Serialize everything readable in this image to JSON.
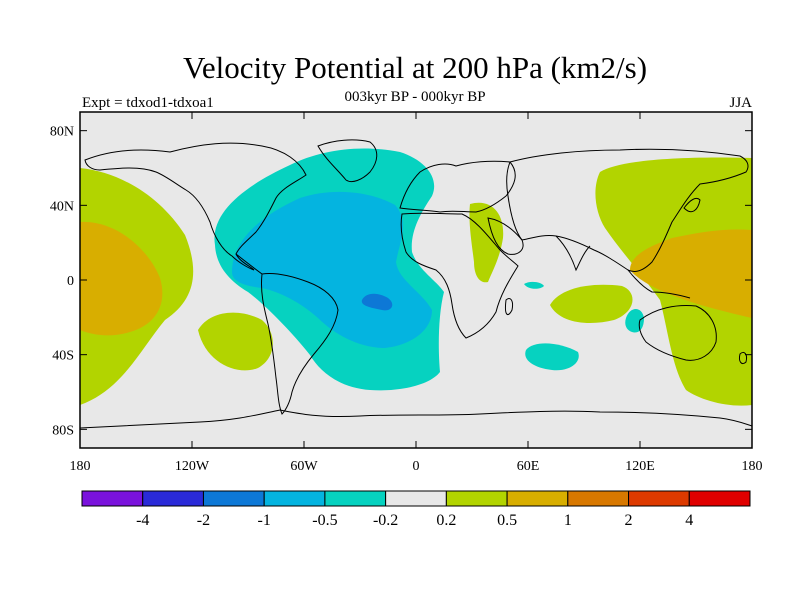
{
  "header": {
    "title": "Velocity Potential at 200 hPa (km2/s)",
    "subtitle": "003kyr BP - 000kyr BP",
    "left_label": "Expt = tdxod1-tdxoa1",
    "right_label": "JJA"
  },
  "map": {
    "lat_ticks": [
      "80N",
      "40N",
      "0",
      "40S",
      "80S"
    ],
    "lat_values": [
      80,
      40,
      0,
      -40,
      -80
    ],
    "lon_ticks": [
      "180",
      "120W",
      "60W",
      "0",
      "60E",
      "120E",
      "180"
    ],
    "lon_values": [
      -180,
      -120,
      -60,
      0,
      60,
      120,
      180
    ],
    "lon_range": [
      -180,
      180
    ],
    "lat_range": [
      -90,
      90
    ]
  },
  "colorbar": {
    "labels": [
      "-4",
      "-2",
      "-1",
      "-0.5",
      "-0.2",
      "0.2",
      "0.5",
      "1",
      "2",
      "4"
    ],
    "colors": [
      "#7a12dc",
      "#2a2ad8",
      "#0d78d6",
      "#04b4e0",
      "#06d2c0",
      "#e8e8e8",
      "#b2d400",
      "#d8ae00",
      "#d87800",
      "#dd3a00",
      "#e00000"
    ]
  }
}
